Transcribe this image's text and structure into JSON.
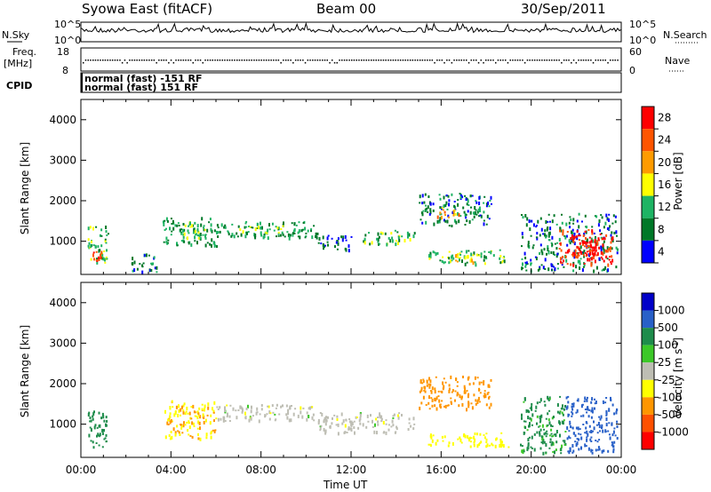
{
  "header": {
    "title": "Syowa East (fitACF)",
    "beam": "Beam 00",
    "date": "30/Sep/2011"
  },
  "noise_panel": {
    "left_label": "N.Sky",
    "right_label": "N.Search",
    "left_ticks": [
      "10^5",
      "10^0"
    ],
    "right_ticks": [
      "10^5",
      "10^0"
    ]
  },
  "freq_panel": {
    "left_label_1": "Freq.",
    "left_label_2": "[MHz]",
    "right_label": "Nave",
    "left_ticks": [
      "18",
      "8"
    ],
    "right_ticks": [
      "60",
      "0"
    ]
  },
  "cpid_panel": {
    "label": "CPID",
    "lines": [
      "normal (fast) -151 RF",
      "normal (fast) 151 RF"
    ]
  },
  "colorbars": {
    "power": {
      "label": "Power [dB]",
      "ticks": [
        "28",
        "24",
        "20",
        "16",
        "12",
        "8",
        "4"
      ],
      "colors": [
        "#ff0000",
        "#ff5500",
        "#ff9b00",
        "#ffff00",
        "#1eb464",
        "#007828",
        "#0000ff"
      ]
    },
    "velocity": {
      "label": "Velocity [m s",
      "label_sup": "-1",
      "label_end": "]",
      "ticks": [
        "1000",
        "500",
        "100",
        "25",
        "-25",
        "-100",
        "-500",
        "-1000"
      ],
      "colors": [
        "#0000c8",
        "#2860c8",
        "#1e8c4b",
        "#3cc828",
        "#bebeb4",
        "#ffff00",
        "#ff9600",
        "#ff5000",
        "#ff0000"
      ]
    }
  },
  "time_axis": {
    "label": "Time UT",
    "ticks": [
      "00:00",
      "04:00",
      "08:00",
      "12:00",
      "16:00",
      "20:00",
      "00:00"
    ]
  },
  "chart_data": [
    {
      "type": "heatmap",
      "panel": "power",
      "ylabel": "Slant Range [km]",
      "xlabel": "",
      "ylim": [
        180,
        4500
      ],
      "xlim_hours": [
        0,
        24
      ],
      "yticks": [
        1000,
        2000,
        3000,
        4000
      ],
      "colorbar_label": "Power [dB]",
      "echo_regions": [
        {
          "t0": 0.3,
          "t1": 1.2,
          "r0": 450,
          "r1": 1400,
          "value": 12
        },
        {
          "t0": 0.5,
          "t1": 0.9,
          "r0": 550,
          "r1": 800,
          "value": 26
        },
        {
          "t0": 2.2,
          "t1": 3.4,
          "r0": 250,
          "r1": 700,
          "value": 8
        },
        {
          "t0": 3.6,
          "t1": 6.0,
          "r0": 900,
          "r1": 1600,
          "value": 10
        },
        {
          "t0": 4.5,
          "t1": 5.6,
          "r0": 1100,
          "r1": 1500,
          "value": 14
        },
        {
          "t0": 6.0,
          "t1": 10.5,
          "r0": 1100,
          "r1": 1500,
          "value": 10
        },
        {
          "t0": 7.0,
          "t1": 9.0,
          "r0": 1200,
          "r1": 1400,
          "value": 14
        },
        {
          "t0": 10.5,
          "t1": 12.0,
          "r0": 800,
          "r1": 1200,
          "value": 6
        },
        {
          "t0": 12.5,
          "t1": 14.8,
          "r0": 950,
          "r1": 1300,
          "value": 12
        },
        {
          "t0": 15.0,
          "t1": 18.2,
          "r0": 1400,
          "r1": 2200,
          "value": 8
        },
        {
          "t0": 15.8,
          "t1": 16.8,
          "r0": 1600,
          "r1": 1850,
          "value": 20
        },
        {
          "t0": 15.4,
          "t1": 19.0,
          "r0": 450,
          "r1": 800,
          "value": 12
        },
        {
          "t0": 16.5,
          "t1": 17.6,
          "r0": 500,
          "r1": 700,
          "value": 18
        },
        {
          "t0": 19.5,
          "t1": 23.8,
          "r0": 300,
          "r1": 1700,
          "value": 8
        },
        {
          "t0": 21.2,
          "t1": 23.6,
          "r0": 450,
          "r1": 1300,
          "value": 26
        },
        {
          "t0": 22.0,
          "t1": 23.4,
          "r0": 600,
          "r1": 1100,
          "value": 29
        }
      ]
    },
    {
      "type": "heatmap",
      "panel": "velocity",
      "ylabel": "Slant Range [km]",
      "xlabel": "Time UT",
      "ylim": [
        180,
        4500
      ],
      "xlim_hours": [
        0,
        24
      ],
      "yticks": [
        1000,
        2000,
        3000,
        4000
      ],
      "colorbar_label": "Velocity [m s-1]",
      "echo_regions": [
        {
          "t0": 0.3,
          "t1": 1.2,
          "r0": 450,
          "r1": 1400,
          "value": 150
        },
        {
          "t0": 3.6,
          "t1": 6.0,
          "r0": 650,
          "r1": 1600,
          "value": -100
        },
        {
          "t0": 6.0,
          "t1": 10.5,
          "r0": 1100,
          "r1": 1500,
          "value": 0
        },
        {
          "t0": 10.5,
          "t1": 14.8,
          "r0": 800,
          "r1": 1300,
          "value": 0
        },
        {
          "t0": 15.0,
          "t1": 18.2,
          "r0": 1400,
          "r1": 2200,
          "value": -200
        },
        {
          "t0": 15.4,
          "t1": 19.0,
          "r0": 450,
          "r1": 800,
          "value": -60
        },
        {
          "t0": 19.5,
          "t1": 21.5,
          "r0": 300,
          "r1": 1700,
          "value": 120
        },
        {
          "t0": 21.5,
          "t1": 23.8,
          "r0": 300,
          "r1": 1700,
          "value": 600
        }
      ]
    }
  ]
}
